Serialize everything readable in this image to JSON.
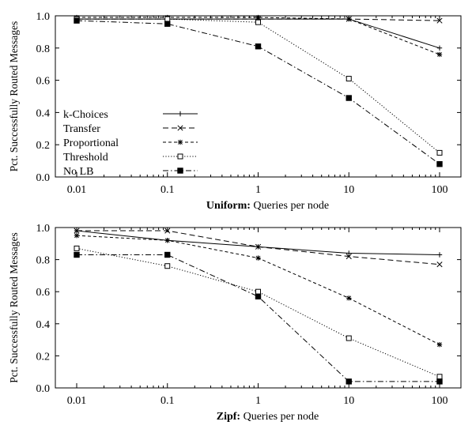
{
  "chart_data": [
    {
      "type": "line",
      "xscale": "log",
      "x": [
        0.01,
        0.1,
        1,
        10,
        100
      ],
      "x_tick_labels": [
        "0.01",
        "0.1",
        "1",
        "10",
        "100"
      ],
      "xlim": [
        0.01,
        100
      ],
      "ylim": [
        0,
        1.0
      ],
      "y_ticks": [
        0.0,
        0.2,
        0.4,
        0.6,
        0.8,
        1.0
      ],
      "y_tick_labels": [
        "0.0",
        "0.2",
        "0.4",
        "0.6",
        "0.8",
        "1.0"
      ],
      "ylabel": "Pct. Successfully Routed Messages",
      "xlabel_bold": "Uniform:",
      "xlabel": "Queries per node",
      "legend": "lower-left",
      "grid": false,
      "series": [
        {
          "name": "k-Choices",
          "marker": "plus",
          "dash": "solid",
          "values": [
            0.98,
            0.98,
            0.98,
            0.98,
            0.8
          ]
        },
        {
          "name": "Transfer",
          "marker": "x",
          "dash": "dashed",
          "values": [
            0.98,
            0.98,
            0.98,
            0.98,
            0.97
          ]
        },
        {
          "name": "Proportional",
          "marker": "star",
          "dash": "short-dashed",
          "values": [
            0.99,
            0.99,
            0.99,
            0.98,
            0.76
          ]
        },
        {
          "name": "Threshold",
          "marker": "open-square",
          "dash": "dotted",
          "values": [
            0.98,
            0.98,
            0.96,
            0.61,
            0.15
          ]
        },
        {
          "name": "No LB",
          "marker": "filled-square",
          "dash": "dash-dot",
          "values": [
            0.97,
            0.95,
            0.81,
            0.49,
            0.08
          ]
        }
      ]
    },
    {
      "type": "line",
      "xscale": "log",
      "x": [
        0.01,
        0.1,
        1,
        10,
        100
      ],
      "x_tick_labels": [
        "0.01",
        "0.1",
        "1",
        "10",
        "100"
      ],
      "xlim": [
        0.01,
        100
      ],
      "ylim": [
        0,
        1.0
      ],
      "y_ticks": [
        0.0,
        0.2,
        0.4,
        0.6,
        0.8,
        1.0
      ],
      "y_tick_labels": [
        "0.0",
        "0.2",
        "0.4",
        "0.6",
        "0.8",
        "1.0"
      ],
      "ylabel": "Pct. Successfully Routed Messages",
      "xlabel_bold": "Zipf:",
      "xlabel": "Queries per node",
      "grid": false,
      "series": [
        {
          "name": "k-Choices",
          "marker": "plus",
          "dash": "solid",
          "values": [
            0.98,
            0.92,
            0.88,
            0.84,
            0.83
          ]
        },
        {
          "name": "Transfer",
          "marker": "x",
          "dash": "dashed",
          "values": [
            0.98,
            0.98,
            0.88,
            0.82,
            0.77
          ]
        },
        {
          "name": "Proportional",
          "marker": "star",
          "dash": "short-dashed",
          "values": [
            0.95,
            0.92,
            0.81,
            0.56,
            0.27
          ]
        },
        {
          "name": "Threshold",
          "marker": "open-square",
          "dash": "dotted",
          "values": [
            0.87,
            0.76,
            0.6,
            0.31,
            0.07
          ]
        },
        {
          "name": "No LB",
          "marker": "filled-square",
          "dash": "dash-dot",
          "values": [
            0.83,
            0.83,
            0.57,
            0.04,
            0.04
          ]
        }
      ]
    }
  ]
}
